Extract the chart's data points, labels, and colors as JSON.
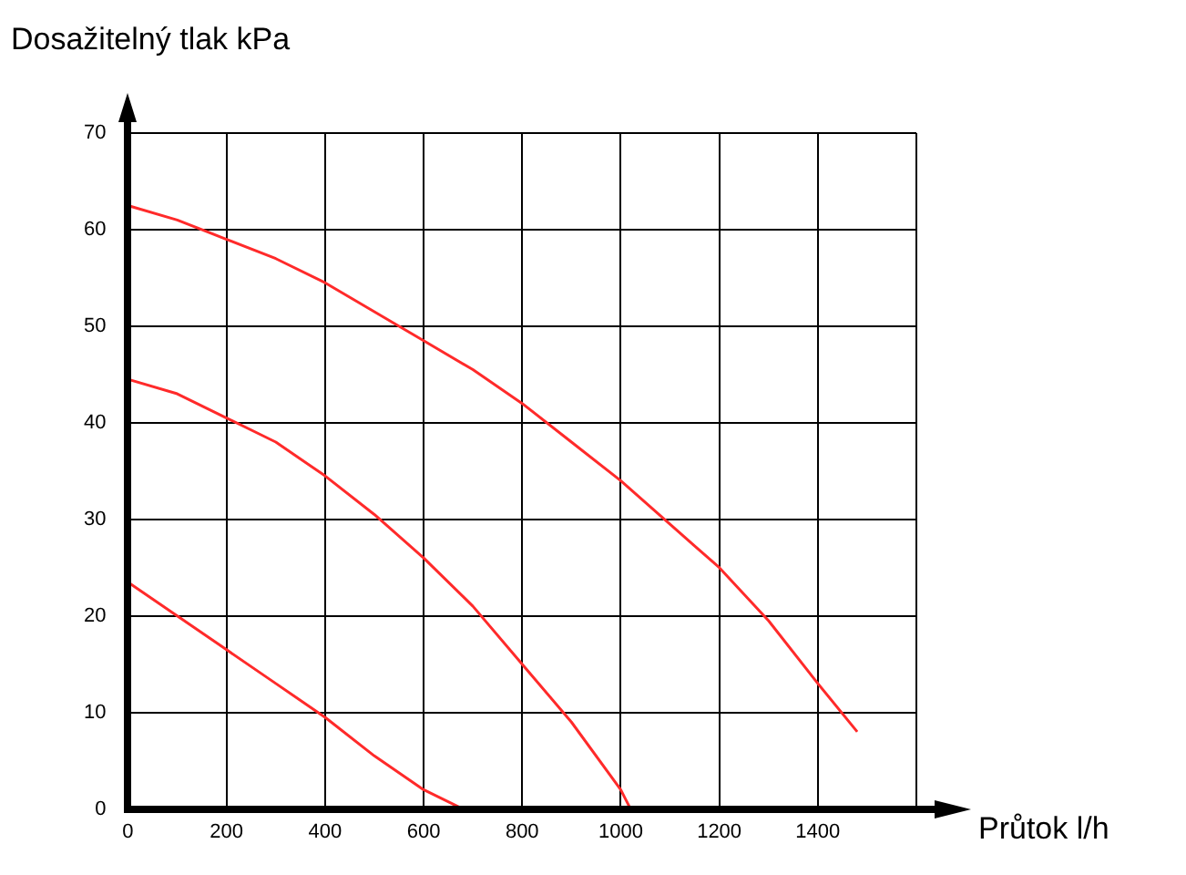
{
  "chart_data": {
    "type": "line",
    "xlabel": "Průtok l/h",
    "ylabel": "Dosažitelný tlak kPa",
    "xlim": [
      0,
      1600
    ],
    "xticks": [
      0,
      200,
      400,
      600,
      800,
      1000,
      1200,
      1400,
      {
        "value": 1600,
        "label": null
      }
    ],
    "ylim": [
      0,
      70
    ],
    "yticks": [
      0,
      10,
      20,
      30,
      40,
      50,
      60,
      70
    ],
    "grid": true,
    "legend": false,
    "series": [
      {
        "color": "#ff2a2a",
        "x": [
          0,
          100,
          200,
          300,
          400,
          500,
          600,
          700,
          800,
          900,
          1000,
          1100,
          1200,
          1300,
          1400,
          1480
        ],
        "values": [
          62.5,
          61,
          59,
          57,
          54.5,
          51.5,
          48.5,
          45.5,
          42,
          38,
          34,
          29.5,
          25,
          19.5,
          13,
          8
        ]
      },
      {
        "color": "#ff2a2a",
        "x": [
          0,
          100,
          200,
          300,
          400,
          500,
          600,
          700,
          800,
          900,
          1000,
          1020
        ],
        "values": [
          44.5,
          43,
          40.5,
          38,
          34.5,
          30.5,
          26,
          21,
          15,
          9,
          2,
          0
        ]
      },
      {
        "color": "#ff2a2a",
        "x": [
          0,
          100,
          200,
          300,
          400,
          500,
          600,
          680
        ],
        "values": [
          23.5,
          20,
          16.5,
          13,
          9.5,
          5.5,
          2,
          0
        ]
      }
    ]
  }
}
